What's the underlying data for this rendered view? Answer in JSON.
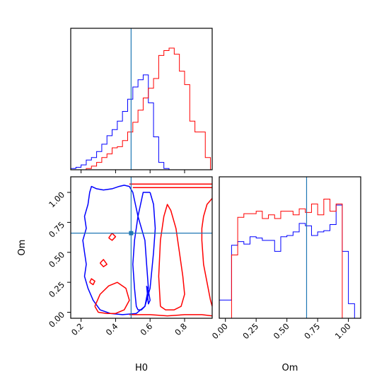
{
  "chart_data": {
    "type": "corner",
    "parameters": [
      "H0",
      "Om"
    ],
    "truths": {
      "H0": 0.49,
      "Om": 0.66
    },
    "colors": {
      "series_a": "#0000ff",
      "series_b": "#ff0000",
      "truth": "#1f77b4"
    },
    "panels": [
      {
        "id": "H0-marginal",
        "type": "histogram",
        "xlim": [
          0.14,
          0.96
        ],
        "ylim": [
          0,
          1
        ],
        "bin_edges": [
          0.14,
          0.17,
          0.2,
          0.23,
          0.26,
          0.29,
          0.32,
          0.35,
          0.38,
          0.41,
          0.44,
          0.47,
          0.5,
          0.53,
          0.56,
          0.59,
          0.62,
          0.65,
          0.68,
          0.71,
          0.74,
          0.77,
          0.8,
          0.83,
          0.86,
          0.89,
          0.92,
          0.95
        ],
        "series": [
          {
            "color": "#0000ff",
            "counts": [
              0.01,
              0.02,
              0.04,
              0.08,
              0.1,
              0.15,
              0.21,
              0.28,
              0.33,
              0.4,
              0.48,
              0.58,
              0.68,
              0.74,
              0.78,
              0.55,
              0.27,
              0.06,
              0.01,
              0,
              0,
              0,
              0,
              0,
              0,
              0,
              0
            ]
          },
          {
            "color": "#ff0000",
            "counts": [
              0,
              0,
              0,
              0.01,
              0.03,
              0.06,
              0.1,
              0.13,
              0.18,
              0.19,
              0.24,
              0.31,
              0.39,
              0.49,
              0.59,
              0.67,
              0.75,
              0.94,
              0.98,
              1.0,
              0.95,
              0.81,
              0.7,
              0.4,
              0.31,
              0.31,
              0.1
            ]
          }
        ]
      },
      {
        "id": "Om-marginal",
        "type": "histogram",
        "xlim": [
          -0.05,
          1.1
        ],
        "ylim": [
          0,
          1
        ],
        "bin_edges": [
          -0.05,
          0.0,
          0.05,
          0.1,
          0.15,
          0.2,
          0.25,
          0.3,
          0.35,
          0.4,
          0.45,
          0.5,
          0.55,
          0.6,
          0.65,
          0.7,
          0.75,
          0.8,
          0.85,
          0.9,
          0.95,
          1.0,
          1.05,
          1.1
        ],
        "series": [
          {
            "color": "#0000ff",
            "counts": [
              0.15,
              0.15,
              0.6,
              0.63,
              0.61,
              0.67,
              0.66,
              0.64,
              0.64,
              0.55,
              0.67,
              0.68,
              0.71,
              0.78,
              0.76,
              0.68,
              0.71,
              0.72,
              0.77,
              0.93,
              0.55,
              0.12,
              0
            ]
          },
          {
            "color": "#ff0000",
            "counts": [
              0,
              0,
              0.52,
              0.83,
              0.86,
              0.86,
              0.88,
              0.82,
              0.85,
              0.82,
              0.88,
              0.88,
              0.85,
              0.9,
              0.87,
              0.94,
              0.85,
              0.98,
              0.88,
              0.94,
              0,
              0,
              0
            ]
          }
        ]
      },
      {
        "id": "H0-Om-joint",
        "type": "contour",
        "xlim": [
          0.14,
          0.96
        ],
        "ylim": [
          -0.05,
          1.13
        ],
        "x_ticks": [
          "0.2",
          "0.4",
          "0.6",
          "0.8"
        ],
        "x_tick_values": [
          0.2,
          0.4,
          0.6,
          0.8
        ],
        "y_ticks": [
          "0.00",
          "0.25",
          "0.50",
          "0.75",
          "1.00"
        ],
        "y_tick_values": [
          0.0,
          0.25,
          0.5,
          0.75,
          1.0
        ],
        "contours": [
          {
            "color": "#0000ff",
            "x": [
              0.25,
              0.24,
              0.22,
              0.23,
              0.21,
              0.22,
              0.23,
              0.22,
              0.24,
              0.27,
              0.31,
              0.37,
              0.44,
              0.52,
              0.57,
              0.59,
              0.58,
              0.57,
              0.53,
              0.5,
              0.48,
              0.45,
              0.42,
              0.38,
              0.33,
              0.29,
              0.26,
              0.25
            ],
            "y": [
              1.0,
              0.9,
              0.8,
              0.7,
              0.6,
              0.5,
              0.4,
              0.3,
              0.2,
              0.1,
              0.02,
              -0.01,
              -0.02,
              -0.01,
              0.05,
              0.2,
              0.4,
              0.6,
              0.8,
              1.0,
              1.05,
              1.06,
              1.05,
              1.03,
              1.02,
              1.03,
              1.05,
              1.0
            ]
          },
          {
            "color": "#0000ff",
            "x": [
              0.6,
              0.62,
              0.63,
              0.62,
              0.6,
              0.57,
              0.55,
              0.53,
              0.52,
              0.51,
              0.5,
              0.51,
              0.53,
              0.56,
              0.6
            ],
            "y": [
              1.0,
              0.9,
              0.7,
              0.5,
              0.2,
              0.05,
              0.02,
              0.02,
              0.05,
              0.2,
              0.4,
              0.6,
              0.8,
              1.0,
              1.0
            ]
          },
          {
            "color": "#0000ff",
            "x": [
              0.58,
              0.59,
              0.6,
              0.59,
              0.58
            ],
            "y": [
              0.22,
              0.18,
              0.1,
              0.07,
              0.22
            ]
          },
          {
            "color": "#ff0000",
            "x": [
              0.48,
              0.5,
              0.6,
              0.7,
              0.8,
              0.9,
              0.96
            ],
            "y": [
              -0.02,
              -0.02,
              -0.02,
              -0.03,
              -0.02,
              -0.02,
              -0.03
            ]
          },
          {
            "color": "#ff0000",
            "x": [
              0.48,
              0.55,
              0.65,
              0.75,
              0.85,
              0.96
            ],
            "y": [
              1.07,
              1.07,
              1.07,
              1.07,
              1.07,
              1.07
            ]
          },
          {
            "color": "#ff0000",
            "x": [
              0.5,
              0.58,
              0.68,
              0.78,
              0.88,
              0.96
            ],
            "y": [
              1.04,
              1.04,
              1.04,
              1.04,
              1.04,
              1.04
            ]
          },
          {
            "color": "#ff0000",
            "x": [
              0.96,
              0.93,
              0.91,
              0.9,
              0.9,
              0.91,
              0.93,
              0.95,
              0.96
            ],
            "y": [
              0.95,
              0.9,
              0.8,
              0.7,
              0.6,
              0.4,
              0.25,
              0.1,
              0.05
            ]
          },
          {
            "color": "#ff0000",
            "x": [
              0.66,
              0.69,
              0.74,
              0.78,
              0.8,
              0.79,
              0.77,
              0.75,
              0.72,
              0.7,
              0.68,
              0.66,
              0.65,
              0.66
            ],
            "y": [
              0.05,
              0.02,
              0.02,
              0.05,
              0.15,
              0.3,
              0.5,
              0.7,
              0.85,
              0.9,
              0.8,
              0.6,
              0.3,
              0.05
            ]
          },
          {
            "color": "#ff0000",
            "x": [
              0.28,
              0.3,
              0.35,
              0.4,
              0.45,
              0.48,
              0.46,
              0.41,
              0.36,
              0.31,
              0.28
            ],
            "y": [
              0.05,
              0.0,
              -0.01,
              -0.01,
              0.02,
              0.1,
              0.2,
              0.25,
              0.22,
              0.15,
              0.05
            ]
          },
          {
            "color": "#ff0000",
            "x": [
              0.36,
              0.38,
              0.4,
              0.38,
              0.36
            ],
            "y": [
              0.62,
              0.6,
              0.63,
              0.66,
              0.62
            ]
          },
          {
            "color": "#ff0000",
            "x": [
              0.31,
              0.33,
              0.35,
              0.33,
              0.31
            ],
            "y": [
              0.41,
              0.38,
              0.4,
              0.44,
              0.41
            ]
          },
          {
            "color": "#ff0000",
            "x": [
              0.25,
              0.27,
              0.28,
              0.26,
              0.25
            ],
            "y": [
              0.25,
              0.23,
              0.26,
              0.28,
              0.25
            ]
          }
        ]
      },
      {
        "id": "Om-marginal-axes",
        "x_ticks": [
          "0.00",
          "0.25",
          "0.50",
          "0.75",
          "1.00"
        ],
        "x_tick_values": [
          0.0,
          0.25,
          0.5,
          0.75,
          1.0
        ]
      }
    ],
    "xlabel_left": "H0",
    "ylabel_left": "Om",
    "xlabel_right": "Om"
  }
}
